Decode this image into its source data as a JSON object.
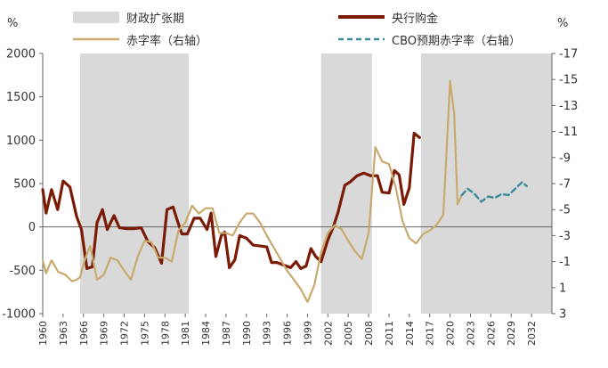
{
  "chart_data": {
    "type": "line",
    "left_unit": "%",
    "right_unit": "%",
    "left_axis": {
      "range": [
        -1000,
        2000
      ],
      "ticks": [
        "2000",
        "1500",
        "1000",
        "500",
        "0",
        "-500",
        "-1000"
      ]
    },
    "right_axis": {
      "inverted": true,
      "range": [
        -17,
        3
      ],
      "ticks": [
        "-17",
        "-15",
        "-13",
        "-11",
        "-9",
        "-7",
        "-5",
        "-3",
        "-1",
        "1",
        "3"
      ]
    },
    "x_axis": {
      "range": [
        1960,
        2035
      ],
      "tick_values": [
        1960,
        1963,
        1966,
        1969,
        1972,
        1975,
        1978,
        1981,
        1984,
        1987,
        1990,
        1993,
        1996,
        1999,
        2002,
        2005,
        2008,
        2011,
        2014,
        2017,
        2020,
        2023,
        2026,
        2029,
        2032
      ],
      "tick_labels": [
        "1960",
        "1963",
        "1966",
        "1969",
        "1972",
        "1975",
        "1978",
        "1981",
        "1984",
        "1987",
        "1990",
        "1993",
        "1996",
        "1999",
        "2002",
        "2005",
        "2008",
        "2011",
        "2014",
        "2017",
        "2020",
        "2023",
        "2026",
        "2029",
        "2032"
      ]
    },
    "shaded_periods": [
      [
        1965.5,
        1981.5
      ],
      [
        2001,
        2008.5
      ],
      [
        2015.7,
        2035
      ]
    ],
    "legend": {
      "fiscal": "财政扩张期",
      "gold": "央行购金",
      "deficit": "赤字率（右轴）",
      "cbo": "CBO预期赤字率（右轴）"
    },
    "colors": {
      "gold": "#7b1a05",
      "deficit": "#c8aa6e",
      "cbo": "#3a8c9a",
      "shade": "#d9d9d9",
      "axis": "#666666"
    },
    "series": [
      {
        "key": "gold",
        "axis": "left",
        "points": [
          [
            1960,
            430
          ],
          [
            1960.5,
            160
          ],
          [
            1961.3,
            430
          ],
          [
            1962.2,
            200
          ],
          [
            1963,
            530
          ],
          [
            1964,
            460
          ],
          [
            1965,
            120
          ],
          [
            1965.7,
            -30
          ],
          [
            1966.5,
            -480
          ],
          [
            1967.3,
            -460
          ],
          [
            1968,
            50
          ],
          [
            1968.8,
            200
          ],
          [
            1969.5,
            -30
          ],
          [
            1970.5,
            130
          ],
          [
            1971.3,
            -10
          ],
          [
            1972.3,
            -20
          ],
          [
            1973.5,
            -20
          ],
          [
            1974.5,
            -10
          ],
          [
            1975.5,
            -170
          ],
          [
            1976.5,
            -240
          ],
          [
            1977.5,
            -420
          ],
          [
            1978.3,
            200
          ],
          [
            1979.2,
            230
          ],
          [
            1979.8,
            80
          ],
          [
            1980.5,
            -80
          ],
          [
            1981.3,
            -80
          ],
          [
            1982.3,
            100
          ],
          [
            1983.2,
            100
          ],
          [
            1984.2,
            -30
          ],
          [
            1984.8,
            160
          ],
          [
            1985.5,
            -340
          ],
          [
            1986.3,
            -100
          ],
          [
            1986.8,
            -60
          ],
          [
            1987.5,
            -470
          ],
          [
            1988.3,
            -380
          ],
          [
            1989,
            -100
          ],
          [
            1990,
            -130
          ],
          [
            1991,
            -210
          ],
          [
            1992,
            -220
          ],
          [
            1993,
            -230
          ],
          [
            1993.7,
            -410
          ],
          [
            1994.5,
            -410
          ],
          [
            1995.5,
            -440
          ],
          [
            1996.5,
            -470
          ],
          [
            1997.3,
            -400
          ],
          [
            1998,
            -480
          ],
          [
            1998.8,
            -450
          ],
          [
            1999.5,
            -250
          ],
          [
            2000.2,
            -340
          ],
          [
            2001,
            -400
          ],
          [
            2002,
            -150
          ],
          [
            2002.8,
            0
          ],
          [
            2003.5,
            170
          ],
          [
            2004.5,
            480
          ],
          [
            2005.3,
            520
          ],
          [
            2006.3,
            590
          ],
          [
            2007.3,
            620
          ],
          [
            2008.3,
            590
          ],
          [
            2009.3,
            590
          ],
          [
            2010,
            400
          ],
          [
            2011,
            390
          ],
          [
            2011.8,
            650
          ],
          [
            2012.5,
            600
          ],
          [
            2013.2,
            260
          ],
          [
            2014,
            450
          ],
          [
            2014.7,
            1080
          ],
          [
            2015.5,
            1030
          ]
        ]
      },
      {
        "key": "deficit",
        "axis": "right",
        "points": [
          [
            1960,
            -1.1
          ],
          [
            1960.5,
            -0.1
          ],
          [
            1961.3,
            -1.1
          ],
          [
            1962.3,
            -0.2
          ],
          [
            1963.3,
            0.0
          ],
          [
            1964.3,
            0.5
          ],
          [
            1965,
            0.4
          ],
          [
            1965.5,
            0.2
          ],
          [
            1966.3,
            -1.3
          ],
          [
            1967,
            -2.2
          ],
          [
            1968,
            0.4
          ],
          [
            1969,
            0.0
          ],
          [
            1970,
            -1.3
          ],
          [
            1971,
            -1.1
          ],
          [
            1972,
            -0.3
          ],
          [
            1973,
            0.4
          ],
          [
            1974,
            -1.4
          ],
          [
            1975,
            -2.6
          ],
          [
            1976,
            -2.5
          ],
          [
            1977,
            -1.3
          ],
          [
            1978,
            -1.3
          ],
          [
            1979,
            -1.0
          ],
          [
            1980,
            -3.4
          ],
          [
            1981,
            -4.0
          ],
          [
            1982,
            -5.3
          ],
          [
            1983,
            -4.7
          ],
          [
            1984,
            -5.1
          ],
          [
            1985,
            -5.1
          ],
          [
            1986,
            -3.2
          ],
          [
            1987,
            -3.2
          ],
          [
            1988,
            -3.0
          ],
          [
            1989,
            -4.0
          ],
          [
            1990,
            -4.7
          ],
          [
            1991,
            -4.7
          ],
          [
            1992,
            -4.0
          ],
          [
            1993,
            -3.0
          ],
          [
            1994,
            -2.1
          ],
          [
            1995,
            -1.2
          ],
          [
            1996,
            -0.3
          ],
          [
            1997,
            0.4
          ],
          [
            1998,
            1.1
          ],
          [
            1999,
            2.1
          ],
          [
            2000,
            0.8
          ],
          [
            2001,
            -1.7
          ],
          [
            2002,
            -3.2
          ],
          [
            2003,
            -3.8
          ],
          [
            2004,
            -3.5
          ],
          [
            2005,
            -2.6
          ],
          [
            2006,
            -1.8
          ],
          [
            2007,
            -1.2
          ],
          [
            2008,
            -3.2
          ],
          [
            2009,
            -9.8
          ],
          [
            2010,
            -8.7
          ],
          [
            2011,
            -8.5
          ],
          [
            2012,
            -6.7
          ],
          [
            2013,
            -4.1
          ],
          [
            2014,
            -2.8
          ],
          [
            2015,
            -2.4
          ],
          [
            2016,
            -3.1
          ],
          [
            2017,
            -3.4
          ],
          [
            2018,
            -3.8
          ],
          [
            2019,
            -4.6
          ],
          [
            2020,
            -14.9
          ],
          [
            2020.6,
            -12.4
          ],
          [
            2021.1,
            -5.4
          ],
          [
            2021.7,
            -6.1
          ]
        ]
      },
      {
        "key": "cbo",
        "axis": "right",
        "points": [
          [
            2021.7,
            -6.1
          ],
          [
            2022.6,
            -6.6
          ],
          [
            2023.6,
            -6.2
          ],
          [
            2024.6,
            -5.6
          ],
          [
            2025.6,
            -6.0
          ],
          [
            2026.6,
            -5.9
          ],
          [
            2027.6,
            -6.2
          ],
          [
            2028.6,
            -6.1
          ],
          [
            2029.6,
            -6.6
          ],
          [
            2030.6,
            -7.1
          ],
          [
            2031.3,
            -6.8
          ]
        ]
      }
    ]
  }
}
